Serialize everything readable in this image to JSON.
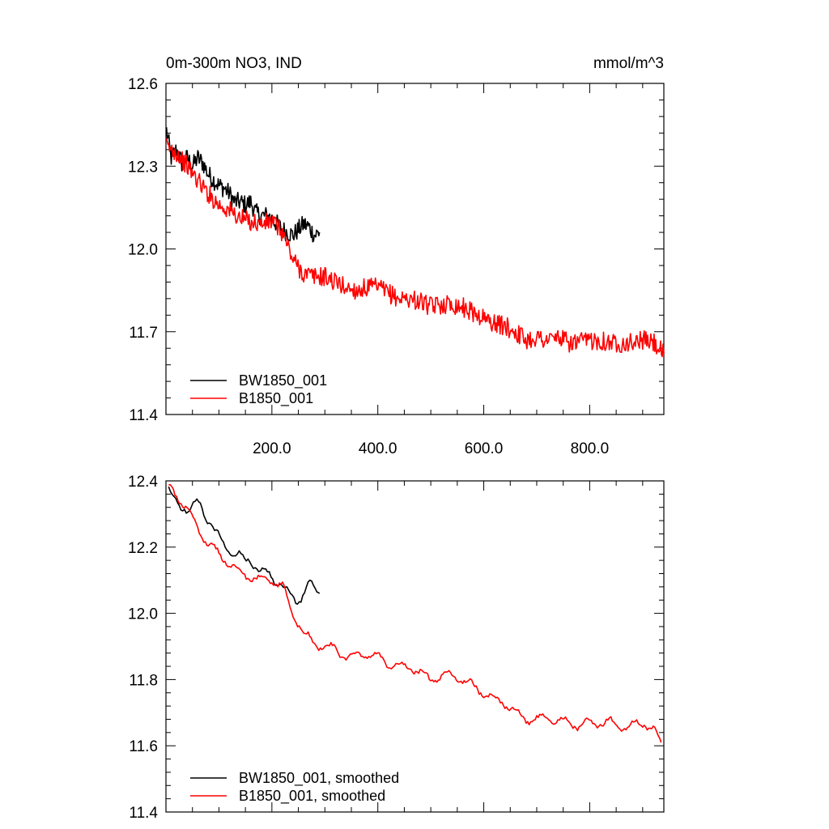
{
  "chart_data": [
    {
      "type": "line",
      "title": "0m-300m NO3, IND",
      "units": "mmol/m^3",
      "xlim": [
        0,
        940
      ],
      "ylim": [
        11.4,
        12.6
      ],
      "xticks": [
        200,
        400,
        600,
        800
      ],
      "xtick_labels": [
        "200.0",
        "400.0",
        "600.0",
        "800.0"
      ],
      "yticks": [
        11.4,
        11.7,
        12.0,
        12.3,
        12.6
      ],
      "ytick_labels": [
        "11.4",
        "11.7",
        "12.0",
        "12.3",
        "12.6"
      ],
      "legend_position": "bottom-left",
      "grid": false,
      "series": [
        {
          "name": "BW1850_001",
          "color": "#000000",
          "x": [
            1,
            10,
            20,
            30,
            40,
            50,
            60,
            70,
            80,
            90,
            100,
            110,
            120,
            130,
            140,
            150,
            160,
            170,
            180,
            190,
            200,
            210,
            220,
            230,
            240,
            250,
            260,
            270,
            280,
            290
          ],
          "y": [
            12.43,
            12.33,
            12.36,
            12.31,
            12.33,
            12.3,
            12.33,
            12.31,
            12.27,
            12.25,
            12.23,
            12.22,
            12.2,
            12.17,
            12.17,
            12.16,
            12.17,
            12.13,
            12.12,
            12.12,
            12.11,
            12.09,
            12.07,
            12.06,
            12.05,
            12.07,
            12.09,
            12.08,
            12.05,
            12.06
          ]
        },
        {
          "name": "B1850_001",
          "color": "#ff0000",
          "x": [
            1,
            20,
            40,
            60,
            80,
            100,
            120,
            140,
            160,
            180,
            200,
            220,
            240,
            260,
            280,
            300,
            320,
            340,
            360,
            380,
            400,
            420,
            440,
            460,
            480,
            500,
            520,
            540,
            560,
            580,
            600,
            620,
            640,
            660,
            680,
            700,
            720,
            740,
            760,
            780,
            800,
            820,
            840,
            860,
            880,
            900,
            920,
            940
          ],
          "y": [
            12.37,
            12.35,
            12.3,
            12.25,
            12.2,
            12.16,
            12.14,
            12.11,
            12.1,
            12.09,
            12.1,
            12.06,
            11.96,
            11.91,
            11.9,
            11.9,
            11.88,
            11.86,
            11.85,
            11.86,
            11.86,
            11.84,
            11.82,
            11.82,
            11.81,
            11.79,
            11.8,
            11.8,
            11.79,
            11.77,
            11.75,
            11.73,
            11.72,
            11.7,
            11.67,
            11.68,
            11.67,
            11.68,
            11.66,
            11.66,
            11.67,
            11.67,
            11.66,
            11.66,
            11.66,
            11.67,
            11.66,
            11.62
          ]
        }
      ]
    },
    {
      "type": "line",
      "xlim": [
        0,
        940
      ],
      "ylim": [
        11.4,
        12.4
      ],
      "yticks": [
        11.4,
        11.6,
        11.8,
        12.0,
        12.2,
        12.4
      ],
      "ytick_labels": [
        "11.4",
        "11.6",
        "11.8",
        "12.0",
        "12.2",
        "12.4"
      ],
      "legend_position": "bottom-left",
      "grid": false,
      "series": [
        {
          "name": "BW1850_001, smoothed",
          "color": "#000000",
          "x": [
            5,
            15,
            25,
            35,
            45,
            55,
            65,
            75,
            85,
            95,
            105,
            115,
            125,
            135,
            145,
            155,
            165,
            175,
            185,
            195,
            205,
            215,
            225,
            235,
            245,
            255,
            265,
            275,
            285,
            290
          ],
          "y": [
            12.37,
            12.34,
            12.33,
            12.32,
            12.31,
            12.33,
            12.33,
            12.29,
            12.27,
            12.24,
            12.22,
            12.2,
            12.18,
            12.18,
            12.16,
            12.16,
            12.15,
            12.13,
            12.12,
            12.12,
            12.1,
            12.09,
            12.07,
            12.05,
            12.04,
            12.05,
            12.08,
            12.09,
            12.06,
            12.06
          ]
        },
        {
          "name": "B1850_001, smoothed",
          "color": "#ff0000",
          "x": [
            5,
            20,
            40,
            60,
            80,
            100,
            120,
            140,
            160,
            180,
            200,
            220,
            240,
            260,
            280,
            300,
            320,
            340,
            360,
            380,
            400,
            420,
            440,
            460,
            480,
            500,
            520,
            540,
            560,
            580,
            600,
            620,
            640,
            660,
            680,
            700,
            720,
            740,
            760,
            780,
            800,
            820,
            840,
            860,
            880,
            900,
            920,
            935
          ],
          "y": [
            12.38,
            12.36,
            12.31,
            12.26,
            12.21,
            12.18,
            12.15,
            12.12,
            12.11,
            12.1,
            12.1,
            12.08,
            12.0,
            11.94,
            11.91,
            11.9,
            11.89,
            11.87,
            11.87,
            11.88,
            11.87,
            11.85,
            11.84,
            11.84,
            11.82,
            11.8,
            11.81,
            11.81,
            11.8,
            11.78,
            11.76,
            11.74,
            11.73,
            11.7,
            11.68,
            11.68,
            11.68,
            11.68,
            11.67,
            11.66,
            11.67,
            11.67,
            11.67,
            11.66,
            11.66,
            11.67,
            11.65,
            11.61
          ]
        }
      ]
    }
  ]
}
